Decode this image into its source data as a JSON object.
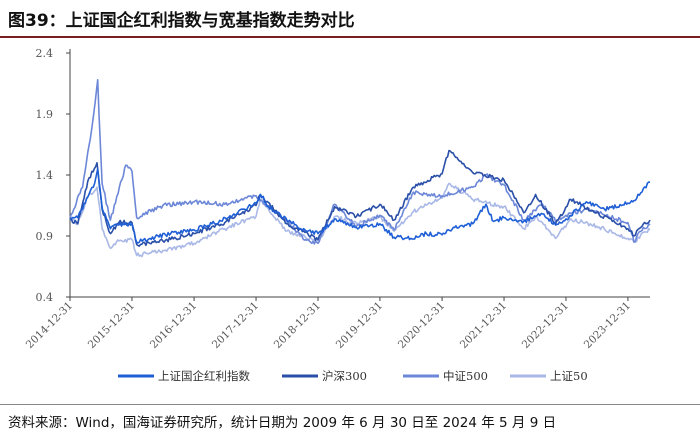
{
  "header": {
    "title": "图39：上证国企红利指数与宽基指数走势对比"
  },
  "source": {
    "text": "资料来源：Wind，国海证券研究所，统计日期为 2009 年 6 月 30 日至 2024 年 5 月 9 日"
  },
  "chart_data": {
    "type": "line",
    "title": "",
    "xlabel": "",
    "ylabel": "",
    "ylim": [
      0.4,
      2.4
    ],
    "yticks": [
      "0.4",
      "0.9",
      "1.4",
      "1.9",
      "2.4"
    ],
    "xlim": [
      "2014-12-31",
      "2024-05-09"
    ],
    "xticks": [
      "2014-12-31",
      "2015-12-31",
      "2016-12-31",
      "2017-12-31",
      "2018-12-31",
      "2019-12-31",
      "2020-12-31",
      "2021-12-31",
      "2022-12-31",
      "2023-12-31"
    ],
    "grid": false,
    "legend_position": "bottom",
    "series": [
      {
        "name": "上证国企红利指数",
        "color": "#1f5fd6",
        "points": [
          [
            "2014-12-31",
            1.03
          ],
          [
            "2015-02-15",
            1.05
          ],
          [
            "2015-04-15",
            1.22
          ],
          [
            "2015-05-25",
            1.33
          ],
          [
            "2015-06-12",
            1.45
          ],
          [
            "2015-07-10",
            1.12
          ],
          [
            "2015-08-26",
            0.96
          ],
          [
            "2015-10-15",
            0.99
          ],
          [
            "2015-12-31",
            1.0
          ],
          [
            "2016-01-28",
            0.85
          ],
          [
            "2016-04-15",
            0.88
          ],
          [
            "2016-08-15",
            0.92
          ],
          [
            "2016-12-31",
            0.95
          ],
          [
            "2017-04-15",
            1.0
          ],
          [
            "2017-08-15",
            1.07
          ],
          [
            "2017-12-31",
            1.17
          ],
          [
            "2018-01-26",
            1.24
          ],
          [
            "2018-03-15",
            1.14
          ],
          [
            "2018-06-30",
            1.03
          ],
          [
            "2018-10-15",
            0.95
          ],
          [
            "2018-12-31",
            0.92
          ],
          [
            "2019-04-15",
            1.04
          ],
          [
            "2019-08-15",
            0.97
          ],
          [
            "2019-12-31",
            1.0
          ],
          [
            "2020-03-23",
            0.89
          ],
          [
            "2020-06-30",
            0.88
          ],
          [
            "2020-09-30",
            0.92
          ],
          [
            "2020-12-31",
            0.91
          ],
          [
            "2021-03-15",
            0.97
          ],
          [
            "2021-06-30",
            1.0
          ],
          [
            "2021-09-15",
            1.16
          ],
          [
            "2021-10-30",
            1.02
          ],
          [
            "2021-12-31",
            1.05
          ],
          [
            "2022-04-26",
            1.02
          ],
          [
            "2022-08-15",
            1.08
          ],
          [
            "2022-10-31",
            0.99
          ],
          [
            "2022-12-31",
            1.04
          ],
          [
            "2023-04-30",
            1.18
          ],
          [
            "2023-08-15",
            1.12
          ],
          [
            "2023-12-31",
            1.17
          ],
          [
            "2024-02-05",
            1.19
          ],
          [
            "2024-03-31",
            1.29
          ],
          [
            "2024-05-09",
            1.34
          ]
        ]
      },
      {
        "name": "沪深300",
        "color": "#2a4fa8",
        "points": [
          [
            "2014-12-31",
            1.04
          ],
          [
            "2015-02-15",
            1.0
          ],
          [
            "2015-04-15",
            1.35
          ],
          [
            "2015-06-08",
            1.5
          ],
          [
            "2015-07-08",
            1.12
          ],
          [
            "2015-08-26",
            0.92
          ],
          [
            "2015-10-15",
            1.01
          ],
          [
            "2015-12-31",
            1.01
          ],
          [
            "2016-01-28",
            0.83
          ],
          [
            "2016-06-30",
            0.86
          ],
          [
            "2016-12-31",
            0.92
          ],
          [
            "2017-06-30",
            1.01
          ],
          [
            "2017-12-31",
            1.15
          ],
          [
            "2018-01-26",
            1.24
          ],
          [
            "2018-06-30",
            1.0
          ],
          [
            "2018-12-31",
            0.87
          ],
          [
            "2019-04-08",
            1.14
          ],
          [
            "2019-08-15",
            1.06
          ],
          [
            "2019-12-31",
            1.16
          ],
          [
            "2020-03-23",
            1.03
          ],
          [
            "2020-07-15",
            1.3
          ],
          [
            "2020-12-31",
            1.41
          ],
          [
            "2021-02-10",
            1.6
          ],
          [
            "2021-06-30",
            1.42
          ],
          [
            "2021-12-31",
            1.36
          ],
          [
            "2022-04-26",
            1.09
          ],
          [
            "2022-07-05",
            1.24
          ],
          [
            "2022-10-31",
            1.0
          ],
          [
            "2023-01-28",
            1.2
          ],
          [
            "2023-06-30",
            1.09
          ],
          [
            "2023-12-31",
            0.96
          ],
          [
            "2024-02-05",
            0.9
          ],
          [
            "2024-03-31",
            1.0
          ],
          [
            "2024-05-09",
            1.03
          ]
        ]
      },
      {
        "name": "中证500",
        "color": "#6c87d8",
        "points": [
          [
            "2014-12-31",
            1.05
          ],
          [
            "2015-03-15",
            1.3
          ],
          [
            "2015-05-15",
            1.85
          ],
          [
            "2015-06-12",
            2.18
          ],
          [
            "2015-07-08",
            1.33
          ],
          [
            "2015-08-26",
            1.03
          ],
          [
            "2015-11-25",
            1.48
          ],
          [
            "2015-12-31",
            1.43
          ],
          [
            "2016-01-28",
            1.05
          ],
          [
            "2016-06-30",
            1.15
          ],
          [
            "2016-12-31",
            1.18
          ],
          [
            "2017-06-30",
            1.16
          ],
          [
            "2017-12-31",
            1.23
          ],
          [
            "2018-06-30",
            1.02
          ],
          [
            "2018-10-19",
            0.87
          ],
          [
            "2018-12-31",
            0.84
          ],
          [
            "2019-04-08",
            1.16
          ],
          [
            "2019-08-15",
            0.98
          ],
          [
            "2019-12-31",
            1.07
          ],
          [
            "2020-03-23",
            0.95
          ],
          [
            "2020-07-15",
            1.26
          ],
          [
            "2020-12-31",
            1.23
          ],
          [
            "2021-06-30",
            1.3
          ],
          [
            "2021-09-15",
            1.4
          ],
          [
            "2021-12-31",
            1.32
          ],
          [
            "2022-04-26",
            1.03
          ],
          [
            "2022-08-15",
            1.16
          ],
          [
            "2022-10-31",
            1.02
          ],
          [
            "2022-12-31",
            1.07
          ],
          [
            "2023-04-30",
            1.12
          ],
          [
            "2023-12-31",
            1.01
          ],
          [
            "2024-02-05",
            0.85
          ],
          [
            "2024-03-31",
            0.97
          ],
          [
            "2024-05-09",
            0.99
          ]
        ]
      },
      {
        "name": "上证50",
        "color": "#a9b8e6",
        "points": [
          [
            "2014-12-31",
            1.06
          ],
          [
            "2015-02-15",
            1.0
          ],
          [
            "2015-04-15",
            1.22
          ],
          [
            "2015-06-08",
            1.3
          ],
          [
            "2015-07-08",
            0.96
          ],
          [
            "2015-08-26",
            0.8
          ],
          [
            "2015-10-15",
            0.86
          ],
          [
            "2015-12-31",
            0.87
          ],
          [
            "2016-01-28",
            0.74
          ],
          [
            "2016-06-30",
            0.78
          ],
          [
            "2016-12-31",
            0.84
          ],
          [
            "2017-06-30",
            0.96
          ],
          [
            "2017-12-31",
            1.06
          ],
          [
            "2018-01-26",
            1.2
          ],
          [
            "2018-06-30",
            0.94
          ],
          [
            "2018-12-31",
            0.86
          ],
          [
            "2019-04-08",
            1.06
          ],
          [
            "2019-08-15",
            1.0
          ],
          [
            "2019-12-31",
            1.06
          ],
          [
            "2020-03-23",
            0.94
          ],
          [
            "2020-07-15",
            1.1
          ],
          [
            "2020-12-31",
            1.21
          ],
          [
            "2021-02-10",
            1.33
          ],
          [
            "2021-06-30",
            1.2
          ],
          [
            "2021-12-31",
            1.14
          ],
          [
            "2022-04-26",
            0.96
          ],
          [
            "2022-07-05",
            1.06
          ],
          [
            "2022-10-31",
            0.88
          ],
          [
            "2023-01-28",
            1.04
          ],
          [
            "2023-06-30",
            0.98
          ],
          [
            "2023-12-31",
            0.88
          ],
          [
            "2024-02-05",
            0.85
          ],
          [
            "2024-03-31",
            0.93
          ],
          [
            "2024-05-09",
            0.95
          ]
        ]
      }
    ]
  }
}
